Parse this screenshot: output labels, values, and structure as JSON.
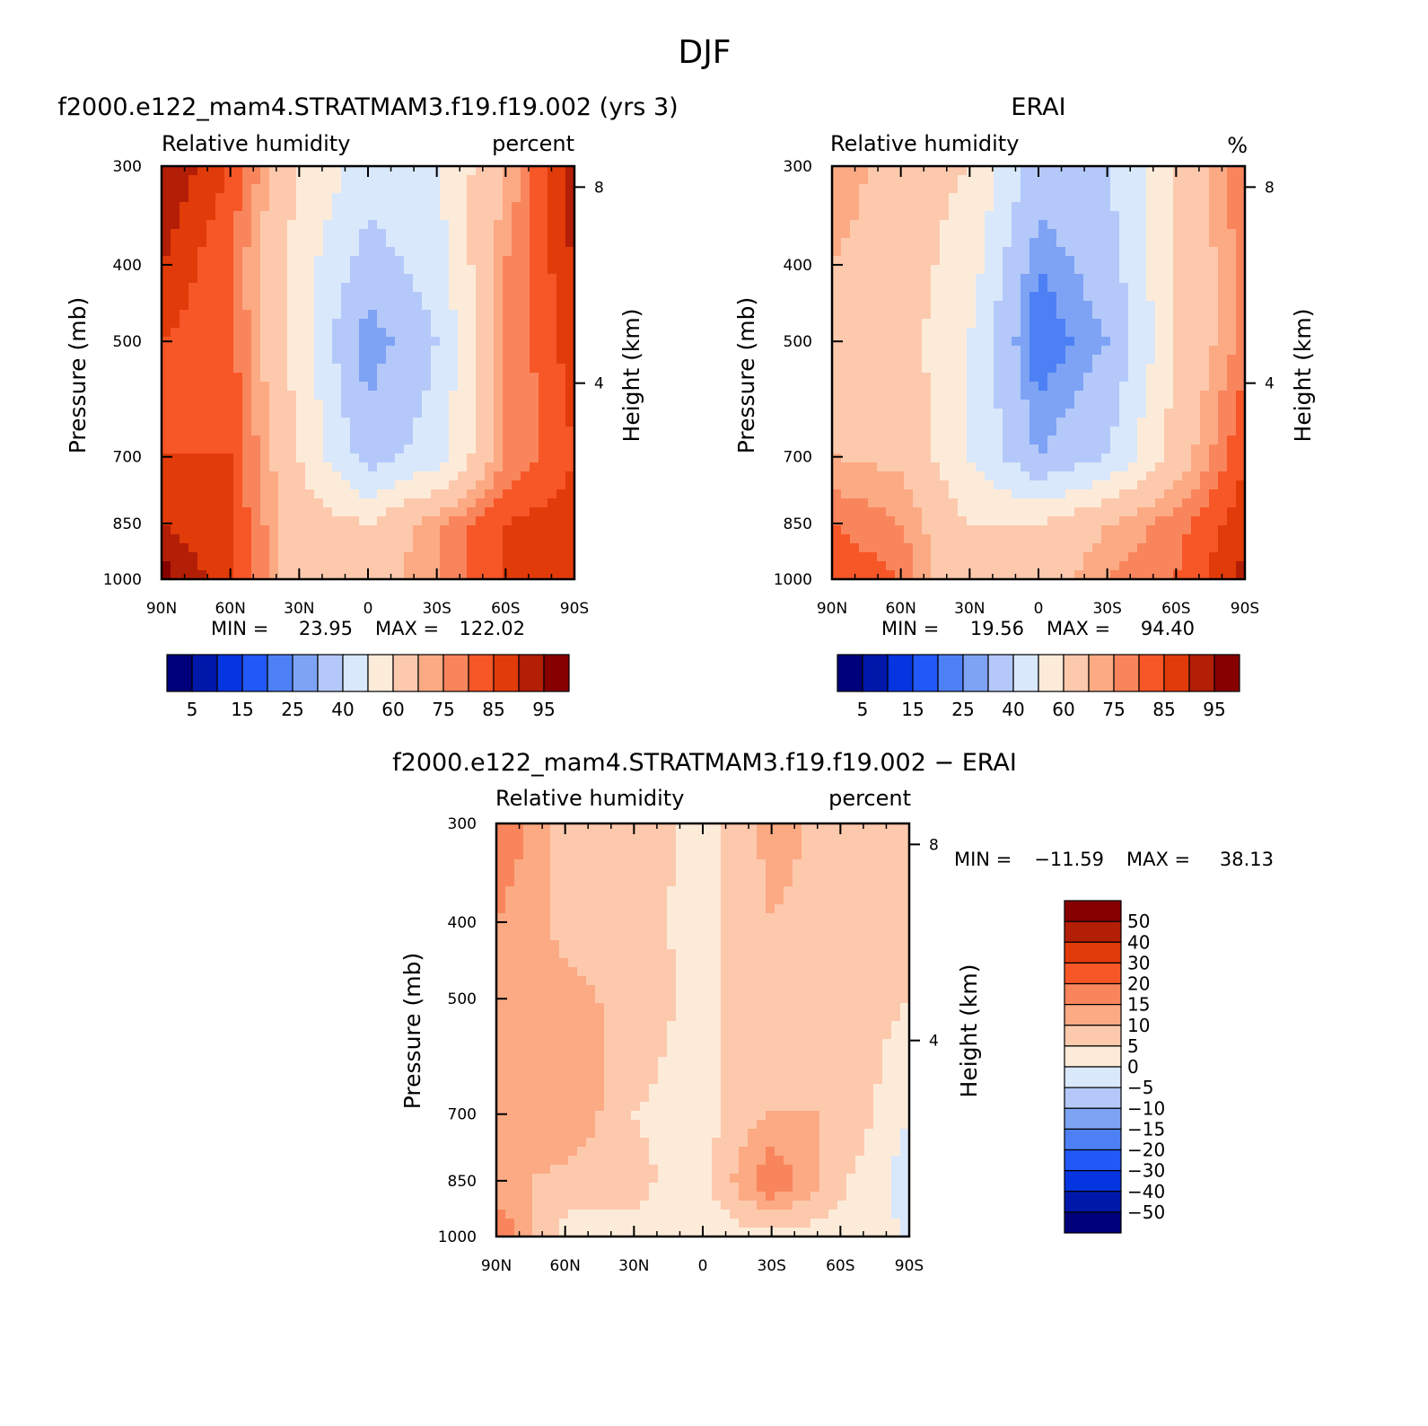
{
  "figure": {
    "title": "DJF"
  },
  "colors": {
    "rh_levels": [
      "#00007a",
      "#0018aa",
      "#0535e0",
      "#2258f5",
      "#4d80f5",
      "#7ea3f5",
      "#b4c9f9",
      "#d9e8fb",
      "#fdebd9",
      "#fdc9ad",
      "#fbaa83",
      "#f9855c",
      "#f75627",
      "#e13b0a",
      "#b31e06",
      "#860000"
    ],
    "diff_levels": [
      "#00007a",
      "#0018aa",
      "#0535e0",
      "#2258f5",
      "#4d80f5",
      "#7ea3f5",
      "#b4c9f9",
      "#d9e8fb",
      "#fdebd9",
      "#fdc9ad",
      "#fbaa83",
      "#f9855c",
      "#f75627",
      "#e13b0a",
      "#b31e06",
      "#860000"
    ]
  },
  "chart_data": [
    {
      "type": "heatmap",
      "panel_title": "f2000.e122_mam4.STRATMAM3.f19.f19.002 (yrs 3)",
      "left_label": "Relative humidity",
      "right_label": "percent",
      "ylabel": "Pressure (mb)",
      "ylabel_right": "Height (km)",
      "x_ticks": [
        "90N",
        "60N",
        "30N",
        "0",
        "30S",
        "60S",
        "90S"
      ],
      "y_ticks": [
        "300",
        "400",
        "500",
        "700",
        "850",
        "1000"
      ],
      "y_right_ticks": [
        "8",
        "4"
      ],
      "y_scale": "log",
      "ylim": [
        1000,
        300
      ],
      "xlim": [
        90,
        -90
      ],
      "stats": {
        "min_label": "MIN =",
        "min": "23.95",
        "max_label": "MAX =",
        "max": "122.02"
      },
      "colorbar_labels": [
        "5",
        "15",
        "25",
        "40",
        "60",
        "75",
        "85",
        "95"
      ],
      "levels": [
        5,
        10,
        15,
        20,
        25,
        30,
        40,
        50,
        60,
        70,
        75,
        80,
        85,
        90,
        95
      ],
      "lat": [
        90,
        60,
        30,
        0,
        -30,
        -60,
        -90
      ],
      "lev": [
        300,
        400,
        500,
        700,
        850,
        1000
      ],
      "z": [
        [
          95,
          85,
          60,
          45,
          50,
          70,
          95
        ],
        [
          90,
          80,
          55,
          35,
          45,
          75,
          90
        ],
        [
          85,
          82,
          55,
          25,
          40,
          75,
          88
        ],
        [
          85,
          85,
          60,
          35,
          45,
          75,
          85
        ],
        [
          90,
          85,
          65,
          60,
          75,
          85,
          88
        ],
        [
          98,
          85,
          65,
          65,
          75,
          85,
          90
        ]
      ]
    },
    {
      "type": "heatmap",
      "panel_title": "ERAI",
      "left_label": "Relative humidity",
      "right_label": "%",
      "ylabel": "Pressure (mb)",
      "ylabel_right": "Height (km)",
      "x_ticks": [
        "90N",
        "60N",
        "30N",
        "0",
        "30S",
        "60S",
        "90S"
      ],
      "y_ticks": [
        "300",
        "400",
        "500",
        "700",
        "850",
        "1000"
      ],
      "y_right_ticks": [
        "8",
        "4"
      ],
      "y_scale": "log",
      "ylim": [
        1000,
        300
      ],
      "xlim": [
        90,
        -90
      ],
      "stats": {
        "min_label": "MIN =",
        "min": "19.56",
        "max_label": "MAX =",
        "max": "94.40"
      },
      "colorbar_labels": [
        "5",
        "15",
        "25",
        "40",
        "60",
        "75",
        "85",
        "95"
      ],
      "levels": [
        5,
        10,
        15,
        20,
        25,
        30,
        40,
        50,
        60,
        70,
        75,
        80,
        85,
        90,
        95
      ],
      "lat": [
        90,
        60,
        30,
        0,
        -30,
        -60,
        -90
      ],
      "lev": [
        300,
        400,
        500,
        700,
        850,
        1000
      ],
      "z": [
        [
          75,
          65,
          60,
          35,
          40,
          60,
          80
        ],
        [
          70,
          65,
          55,
          25,
          35,
          60,
          78
        ],
        [
          68,
          65,
          50,
          20,
          30,
          60,
          78
        ],
        [
          70,
          68,
          50,
          30,
          40,
          65,
          85
        ],
        [
          80,
          75,
          60,
          60,
          70,
          78,
          88
        ],
        [
          85,
          80,
          60,
          65,
          75,
          80,
          92
        ]
      ]
    },
    {
      "type": "heatmap",
      "panel_title": "f2000.e122_mam4.STRATMAM3.f19.f19.002 − ERAI",
      "left_label": "Relative humidity",
      "right_label": "percent",
      "ylabel": "Pressure (mb)",
      "ylabel_right": "Height (km)",
      "x_ticks": [
        "90N",
        "60N",
        "30N",
        "0",
        "30S",
        "60S",
        "90S"
      ],
      "y_ticks": [
        "300",
        "400",
        "500",
        "700",
        "850",
        "1000"
      ],
      "y_right_ticks": [
        "8",
        "4"
      ],
      "y_scale": "log",
      "ylim": [
        1000,
        300
      ],
      "xlim": [
        90,
        -90
      ],
      "stats": {
        "min_label": "MIN =",
        "min": "−11.59",
        "max_label": "MAX =",
        "max": "38.13"
      },
      "colorbar_labels": [
        "50",
        "40",
        "30",
        "20",
        "15",
        "10",
        "5",
        "0",
        "−5",
        "−10",
        "−15",
        "−20",
        "−30",
        "−40",
        "−50"
      ],
      "levels": [
        -50,
        -40,
        -30,
        -20,
        -15,
        -10,
        -5,
        0,
        5,
        10,
        15,
        20,
        30,
        40,
        50
      ],
      "lat": [
        90,
        60,
        30,
        0,
        -30,
        -60,
        -90
      ],
      "lev": [
        300,
        400,
        500,
        700,
        850,
        1000
      ],
      "z": [
        [
          20,
          8,
          8,
          3,
          12,
          8,
          10
        ],
        [
          15,
          8,
          7,
          3,
          10,
          7,
          10
        ],
        [
          15,
          12,
          8,
          3,
          10,
          8,
          5
        ],
        [
          15,
          15,
          5,
          3,
          10,
          10,
          0
        ],
        [
          12,
          8,
          6,
          3,
          20,
          6,
          -3
        ],
        [
          20,
          3,
          4,
          2,
          3,
          3,
          0
        ]
      ]
    }
  ]
}
